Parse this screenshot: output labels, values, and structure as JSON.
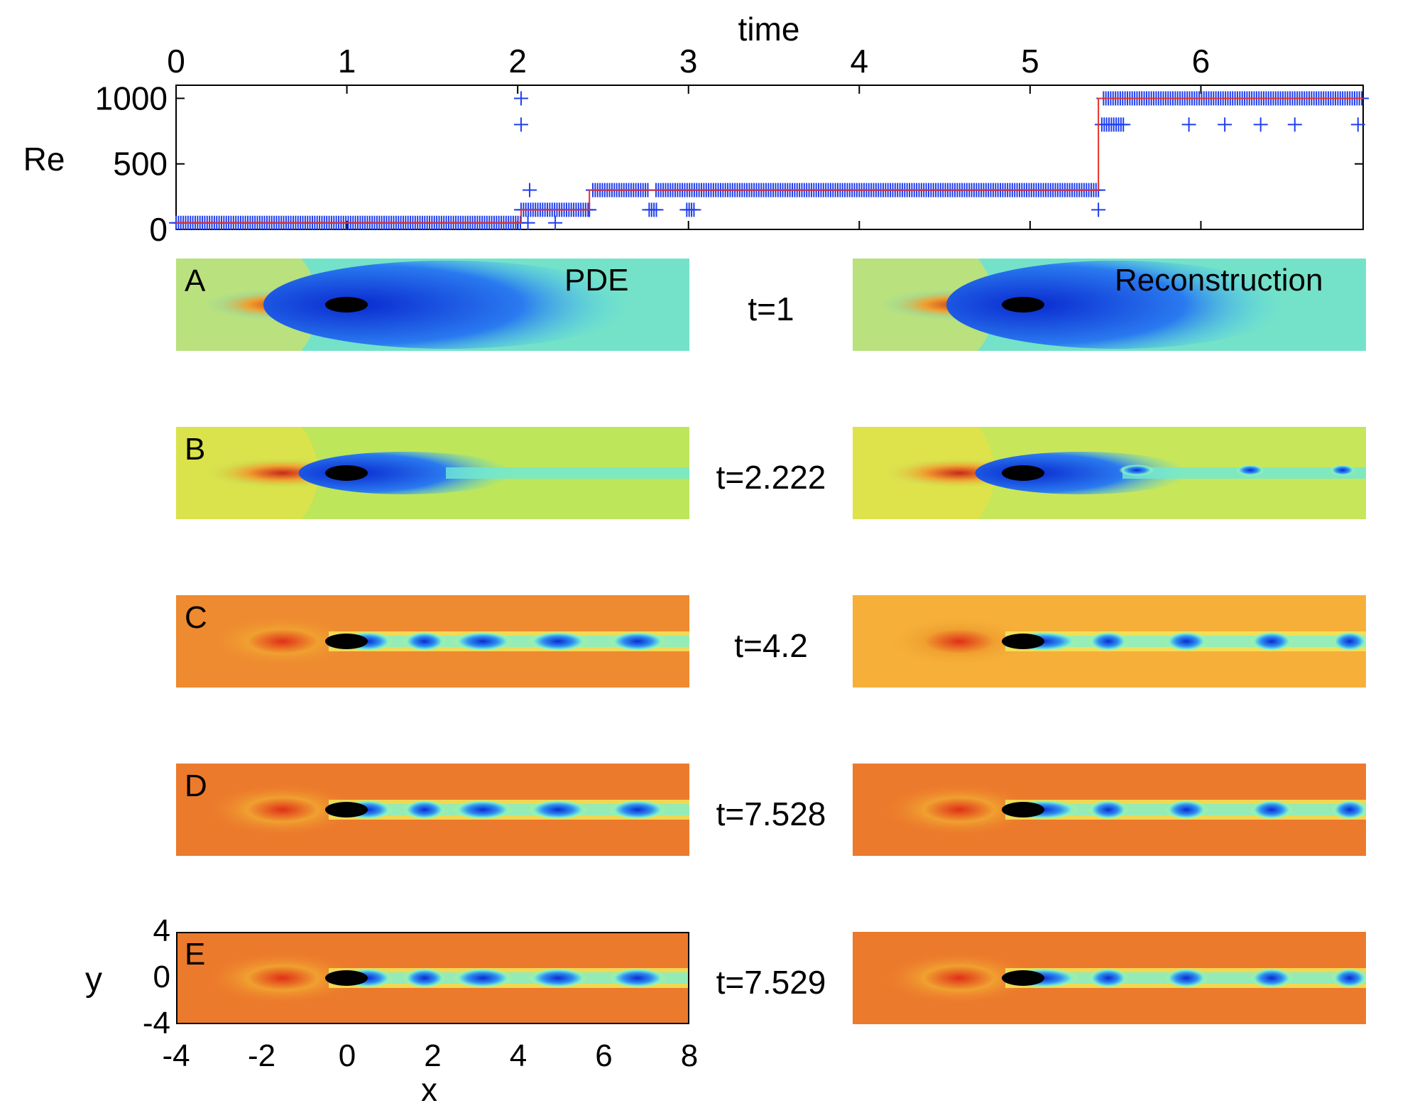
{
  "re_chart": {
    "chart_data": {
      "type": "scatter",
      "title": "",
      "xlabel": "time",
      "ylabel": "Re",
      "xlim": [
        0,
        6.95
      ],
      "ylim": [
        0,
        1100
      ],
      "xticks": [
        "0",
        "1",
        "2",
        "3",
        "4",
        "5",
        "6"
      ],
      "yticks": [
        "0",
        "500",
        "1000"
      ],
      "step_line": {
        "x": [
          0,
          2.02,
          2.02,
          2.42,
          2.42,
          5.4,
          5.4,
          6.95
        ],
        "y": [
          50,
          50,
          150,
          150,
          300,
          300,
          1000,
          1000
        ]
      },
      "markers_dense_segments": [
        {
          "x0": 0.0,
          "x1": 2.02,
          "y": 50
        },
        {
          "x0": 2.02,
          "x1": 2.42,
          "y": 150
        },
        {
          "x0": 2.44,
          "x1": 2.77,
          "y": 300
        },
        {
          "x0": 2.81,
          "x1": 5.4,
          "y": 300
        },
        {
          "x0": 5.43,
          "x1": 6.95,
          "y": 1000
        },
        {
          "x0": 5.42,
          "x1": 5.55,
          "y": 800
        },
        {
          "x0": 2.77,
          "x1": 2.82,
          "y": 150
        },
        {
          "x0": 2.99,
          "x1": 3.04,
          "y": 150
        }
      ],
      "markers_isolated": [
        {
          "x": 2.02,
          "y": 1000
        },
        {
          "x": 2.02,
          "y": 800
        },
        {
          "x": 2.07,
          "y": 300
        },
        {
          "x": 2.06,
          "y": 50
        },
        {
          "x": 2.22,
          "y": 50
        },
        {
          "x": 2.42,
          "y": 150
        },
        {
          "x": 5.4,
          "y": 150
        },
        {
          "x": 5.93,
          "y": 800
        },
        {
          "x": 6.14,
          "y": 800
        },
        {
          "x": 6.35,
          "y": 800
        },
        {
          "x": 6.55,
          "y": 800
        },
        {
          "x": 6.92,
          "y": 800
        }
      ]
    }
  },
  "panels": [
    {
      "letter": "A",
      "time": "t=1",
      "method_left": "PDE",
      "method_right": "Reconstruction"
    },
    {
      "letter": "B",
      "time": "t=2.222"
    },
    {
      "letter": "C",
      "time": "t=4.2"
    },
    {
      "letter": "D",
      "time": "t=7.528"
    },
    {
      "letter": "E",
      "time": "t=7.529"
    }
  ],
  "field_axes": {
    "xlabel": "x",
    "ylabel": "y",
    "xticks": [
      "-4",
      "-2",
      "0",
      "2",
      "4",
      "6",
      "8"
    ],
    "yticks": [
      "4",
      "0",
      "-4"
    ]
  },
  "colors": {
    "step_line": "#e8322a",
    "markers": "#1f3ff0"
  }
}
